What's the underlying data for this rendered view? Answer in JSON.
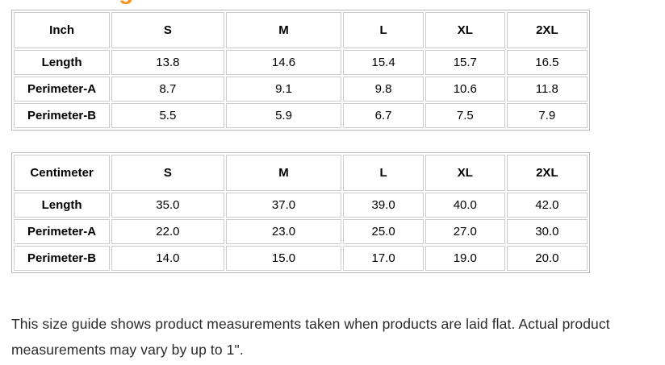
{
  "heading_fragment": {
    "text": "g",
    "color": "#f6921e"
  },
  "tables": [
    {
      "unit": "inch",
      "header": [
        "Inch",
        "S",
        "M",
        "L",
        "XL",
        "2XL"
      ],
      "rows": [
        {
          "label": "Length",
          "values": [
            "13.8",
            "14.6",
            "15.4",
            "15.7",
            "16.5"
          ]
        },
        {
          "label": "Perimeter-A",
          "values": [
            "8.7",
            "9.1",
            "9.8",
            "10.6",
            "11.8"
          ]
        },
        {
          "label": "Perimeter-B",
          "values": [
            "5.5",
            "5.9",
            "6.7",
            "7.5",
            "7.9"
          ]
        }
      ]
    },
    {
      "unit": "centimeter",
      "header": [
        "Centimeter",
        "S",
        "M",
        "L",
        "XL",
        "2XL"
      ],
      "rows": [
        {
          "label": "Length",
          "values": [
            "35.0",
            "37.0",
            "39.0",
            "40.0",
            "42.0"
          ]
        },
        {
          "label": "Perimeter-A",
          "values": [
            "22.0",
            "23.0",
            "25.0",
            "27.0",
            "30.0"
          ]
        },
        {
          "label": "Perimeter-B",
          "values": [
            "14.0",
            "15.0",
            "17.0",
            "19.0",
            "20.0"
          ]
        }
      ]
    }
  ],
  "footer": {
    "note": "This size guide shows product measurements taken when products are laid flat. Actual product measurements may vary by up to 1\"."
  },
  "colors": {
    "cell_border": "#cccccc",
    "table_border": "#b9b9b9",
    "table_text": "#000000",
    "note_text": "#2b2b2b",
    "accent": "#f6921e"
  }
}
